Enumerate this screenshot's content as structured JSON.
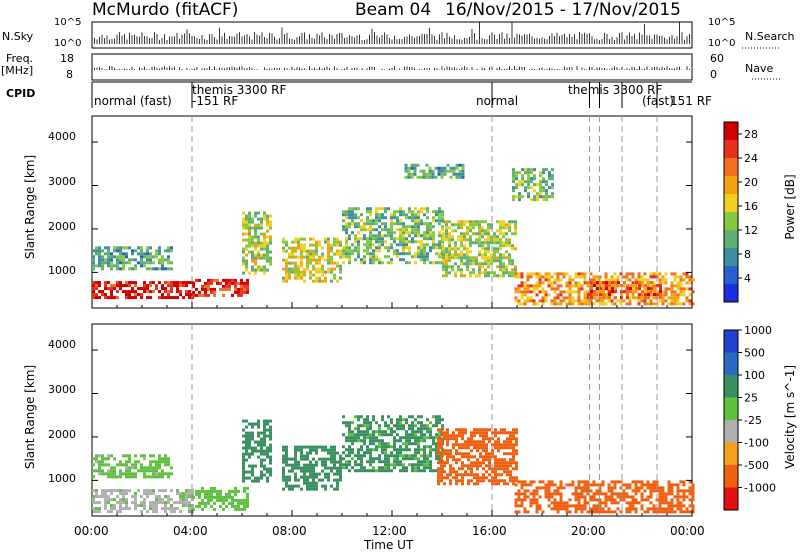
{
  "header": {
    "station": "McMurdo",
    "fit": "(fitACF)",
    "beam": "Beam 04",
    "dates": "16/Nov/2015 - 17/Nov/2015"
  },
  "top_panels": {
    "nsky_label": "N.Sky",
    "nsky_ticks": [
      "10^5",
      "10^0"
    ],
    "nsearch_label": "N.Search",
    "nsearch_ticks": [
      "10^5",
      "10^0"
    ],
    "freq_label": "Freq.",
    "freq_unit": "[MHz]",
    "freq_ticks": [
      "18",
      "8"
    ],
    "nave_label": "Nave",
    "nave_ticks": [
      "60",
      "0"
    ],
    "cpid_label": "CPID",
    "cpid_annotations": [
      {
        "t": 0.0,
        "text": "normal (fast)"
      },
      {
        "t": 4.0,
        "text": "themis 3300 RF"
      },
      {
        "t": 4.0,
        "text": "-151 RF"
      },
      {
        "t": 16.0,
        "text": "normal"
      },
      {
        "t": 18.9,
        "text": "themis 3300 RF"
      },
      {
        "t": 22.0,
        "text": "(fast)"
      },
      {
        "t": 22.8,
        "text": "151 RF"
      }
    ],
    "mode_changes": [
      4.0,
      16.0,
      19.9,
      20.3,
      21.2,
      22.6
    ]
  },
  "time_axis": {
    "label": "Time UT",
    "ticks": [
      "00:00",
      "04:00",
      "08:00",
      "12:00",
      "16:00",
      "20:00",
      "00:00"
    ]
  },
  "panels": [
    {
      "id": "power",
      "ylabel": "Slant Range [km]",
      "yticks": [
        "1000",
        "2000",
        "3000",
        "4000"
      ],
      "colorbar_label": "Power [dB]",
      "colorbar_ticks": [
        "4",
        "8",
        "12",
        "16",
        "20",
        "24",
        "28"
      ]
    },
    {
      "id": "velocity",
      "ylabel": "Slant Range [km]",
      "yticks": [
        "1000",
        "2000",
        "3000",
        "4000"
      ],
      "colorbar_label": "Velocity [m s^-1]",
      "colorbar_ticks": [
        "-1000",
        "-500",
        "-100",
        "-25",
        "25",
        "100",
        "500",
        "1000"
      ]
    }
  ],
  "chart_data": [
    {
      "type": "heatmap",
      "title": "McMurdo (fitACF) Beam 04 16/Nov/2015 - 17/Nov/2015",
      "xlabel": "Time UT",
      "ylabel": "Slant Range [km]",
      "xlim_hours": [
        0,
        24
      ],
      "ylim_km": [
        180,
        4600
      ],
      "colorbar": {
        "label": "Power [dB]",
        "range": [
          0,
          30
        ],
        "ticks": [
          4,
          8,
          12,
          16,
          20,
          24,
          28
        ],
        "colors": [
          "#1a2fe0",
          "#2a5fd0",
          "#3e8fa0",
          "#5fb070",
          "#86c840",
          "#f0d020",
          "#f5a010",
          "#f07020",
          "#e83020",
          "#d00000"
        ]
      },
      "echo_regions": [
        {
          "t": [
            0.0,
            4.0
          ],
          "range_km": [
            400,
            800
          ],
          "value": 28
        },
        {
          "t": [
            4.0,
            6.2
          ],
          "range_km": [
            450,
            850
          ],
          "value": 27
        },
        {
          "t": [
            0.0,
            3.2
          ],
          "range_km": [
            1100,
            1600
          ],
          "value": 10
        },
        {
          "t": [
            6.0,
            7.2
          ],
          "range_km": [
            1000,
            2400
          ],
          "value": 14
        },
        {
          "t": [
            7.6,
            10.0
          ],
          "range_km": [
            800,
            1800
          ],
          "value": 16
        },
        {
          "t": [
            10.0,
            14.0
          ],
          "range_km": [
            1200,
            2500
          ],
          "value": 12
        },
        {
          "t": [
            12.5,
            14.8
          ],
          "range_km": [
            3200,
            3500
          ],
          "value": 10
        },
        {
          "t": [
            14.0,
            17.0
          ],
          "range_km": [
            900,
            2200
          ],
          "value": 14
        },
        {
          "t": [
            16.8,
            18.4
          ],
          "range_km": [
            2700,
            3400
          ],
          "value": 12
        },
        {
          "t": [
            16.9,
            24.0
          ],
          "range_km": [
            300,
            1000
          ],
          "value": 20
        },
        {
          "t": [
            19.8,
            22.8
          ],
          "range_km": [
            400,
            800
          ],
          "value": 24
        }
      ]
    },
    {
      "type": "heatmap",
      "title": "",
      "xlabel": "Time UT",
      "ylabel": "Slant Range [km]",
      "xlim_hours": [
        0,
        24
      ],
      "ylim_km": [
        180,
        4600
      ],
      "colorbar": {
        "label": "Velocity [m s^-1]",
        "range": [
          -1000,
          1000
        ],
        "ticks": [
          -1000,
          -500,
          -100,
          -25,
          25,
          100,
          500,
          1000
        ],
        "colors": [
          "#e01010",
          "#f06010",
          "#f5a020",
          "#b0b0b0",
          "#60c040",
          "#3a9060",
          "#2a6ac0",
          "#2040d0"
        ]
      },
      "echo_regions": [
        {
          "t": [
            0.0,
            4.0
          ],
          "range_km": [
            300,
            800
          ],
          "value": 10
        },
        {
          "t": [
            4.0,
            6.2
          ],
          "range_km": [
            300,
            850
          ],
          "value": 60
        },
        {
          "t": [
            0.0,
            3.2
          ],
          "range_km": [
            1100,
            1600
          ],
          "value": 50
        },
        {
          "t": [
            6.0,
            7.2
          ],
          "range_km": [
            1000,
            2400
          ],
          "value": 200
        },
        {
          "t": [
            7.6,
            10.0
          ],
          "range_km": [
            800,
            1800
          ],
          "value": 150
        },
        {
          "t": [
            10.0,
            14.0
          ],
          "range_km": [
            1200,
            2500
          ],
          "value": 120
        },
        {
          "t": [
            13.8,
            17.0
          ],
          "range_km": [
            900,
            2200
          ],
          "value": -300
        },
        {
          "t": [
            16.9,
            24.0
          ],
          "range_km": [
            300,
            1000
          ],
          "value": -300
        }
      ]
    }
  ]
}
